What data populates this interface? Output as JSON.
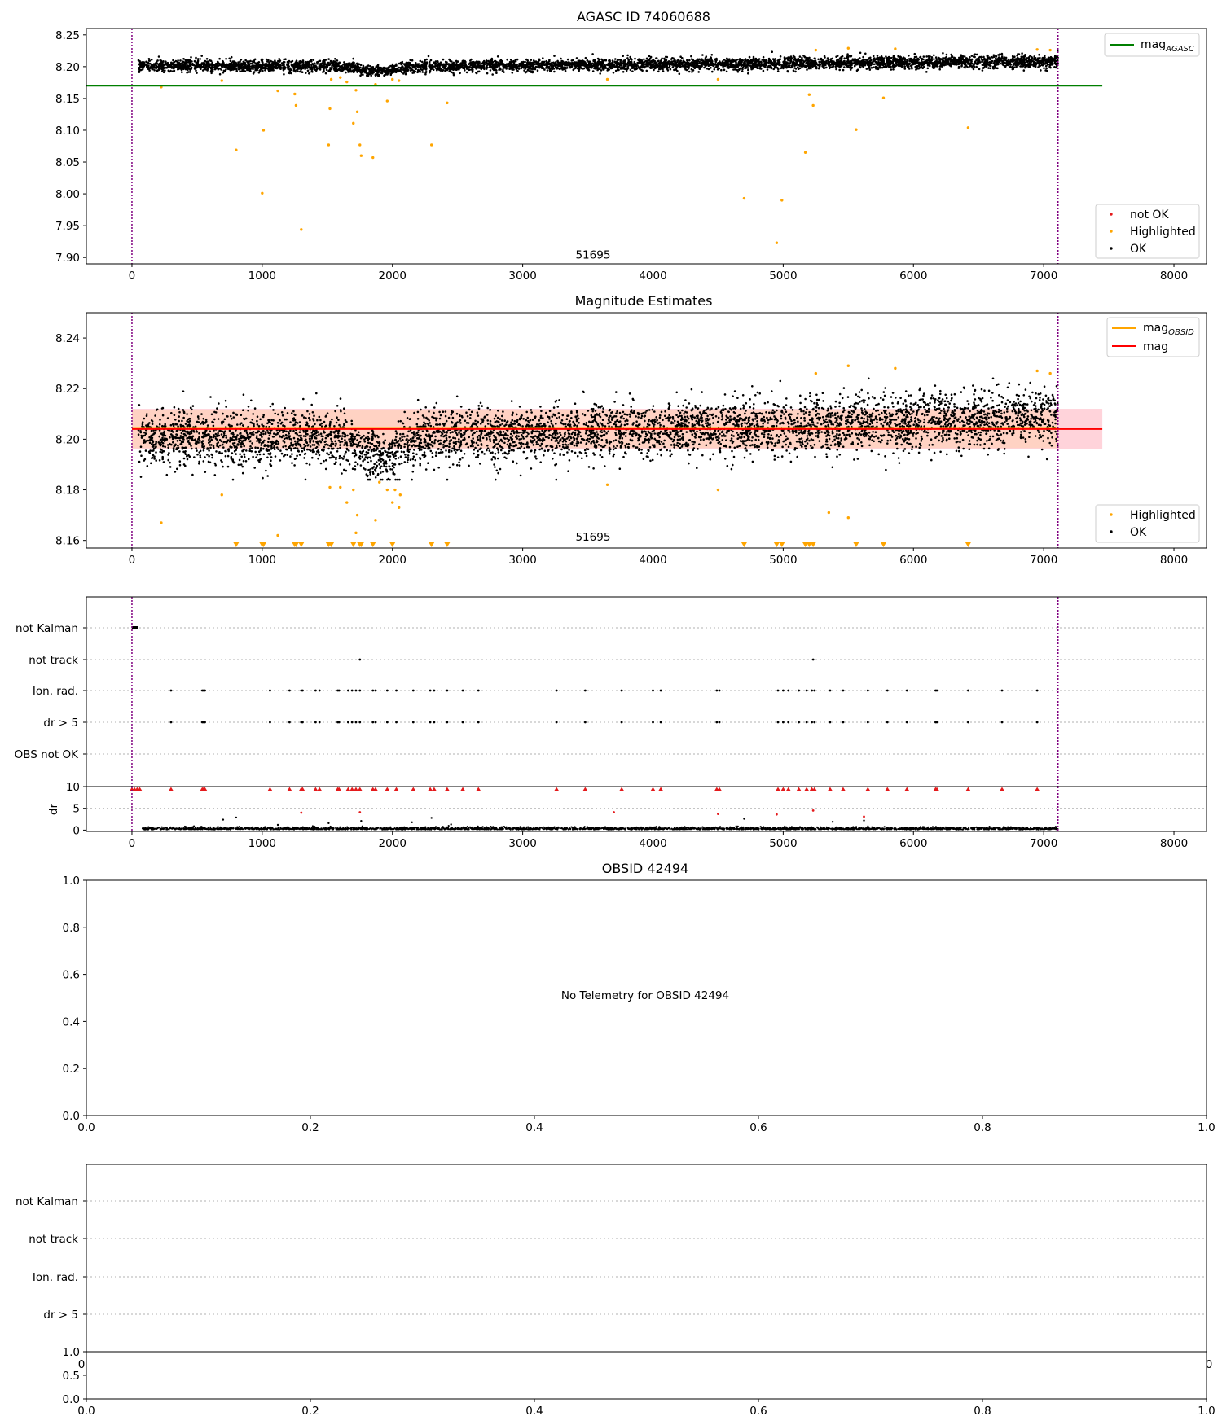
{
  "colors": {
    "ok": "#000000",
    "highlighted": "#ffa500",
    "not_ok": "#e41a1c",
    "mag_agasc": "#007f00",
    "mag": "#ff0000",
    "mag_obsid": "#ffa500",
    "obs_boundary": "#800080",
    "band_outer": "#ffb6c1",
    "band_inner": "#ffd2b4"
  },
  "chart_data": [
    {
      "id": "mag-history",
      "type": "scatter",
      "title": "AGASC ID 74060688",
      "xlim": [
        -350,
        8250
      ],
      "ylim": [
        7.89,
        8.26
      ],
      "x_ticks": [
        0,
        1000,
        2000,
        3000,
        4000,
        5000,
        6000,
        7000,
        8000
      ],
      "y_ticks": [
        7.9,
        7.95,
        8.0,
        8.05,
        8.1,
        8.15,
        8.2,
        8.25
      ],
      "obs_boundaries": [
        0,
        7110
      ],
      "annotation": {
        "text": "51695",
        "x": 3540,
        "y": 7.905
      },
      "lines": [
        {
          "name": "mag",
          "subscript": "AGASC",
          "y": 8.17,
          "x": [
            -350,
            7450
          ],
          "color": "#007f00"
        }
      ],
      "legend_lines_position": "top-right",
      "legend_points_position": "lower-right",
      "legend_points": [
        "not OK",
        "Highlighted",
        "OK"
      ],
      "ok_band": {
        "center": 8.204,
        "spread": 0.007,
        "x": [
          50,
          7110
        ]
      },
      "highlighted": [
        [
          225,
          8.168
        ],
        [
          690,
          8.178
        ],
        [
          800,
          8.069
        ],
        [
          1000,
          8.001
        ],
        [
          1010,
          8.1
        ],
        [
          1120,
          8.162
        ],
        [
          1250,
          8.157
        ],
        [
          1260,
          8.139
        ],
        [
          1300,
          7.944
        ],
        [
          1510,
          8.077
        ],
        [
          1520,
          8.134
        ],
        [
          1530,
          8.18
        ],
        [
          1600,
          8.183
        ],
        [
          1650,
          8.176
        ],
        [
          1700,
          8.111
        ],
        [
          1720,
          8.163
        ],
        [
          1730,
          8.129
        ],
        [
          1750,
          8.077
        ],
        [
          1760,
          8.06
        ],
        [
          1850,
          8.057
        ],
        [
          1870,
          8.172
        ],
        [
          1960,
          8.146
        ],
        [
          2000,
          8.18
        ],
        [
          2050,
          8.178
        ],
        [
          2300,
          8.077
        ],
        [
          2420,
          8.143
        ],
        [
          3650,
          8.18
        ],
        [
          4500,
          8.18
        ],
        [
          4700,
          7.993
        ],
        [
          4950,
          7.923
        ],
        [
          4990,
          7.99
        ],
        [
          5170,
          8.065
        ],
        [
          5200,
          8.156
        ],
        [
          5230,
          8.139
        ],
        [
          5250,
          8.226
        ],
        [
          5500,
          8.229
        ],
        [
          5560,
          8.101
        ],
        [
          5770,
          8.151
        ],
        [
          5860,
          8.228
        ],
        [
          6420,
          8.104
        ],
        [
          6950,
          8.227
        ],
        [
          7050,
          8.226
        ]
      ]
    },
    {
      "id": "mag-estimates",
      "type": "scatter",
      "title": "Magnitude Estimates",
      "xlim": [
        -350,
        8250
      ],
      "ylim": [
        8.157,
        8.25
      ],
      "x_ticks": [
        0,
        1000,
        2000,
        3000,
        4000,
        5000,
        6000,
        7000,
        8000
      ],
      "y_ticks": [
        8.16,
        8.18,
        8.2,
        8.22,
        8.24
      ],
      "obs_boundaries": [
        0,
        7110
      ],
      "annotation": {
        "text": "51695",
        "x": 3540,
        "y": 8.1615
      },
      "lines": [
        {
          "name": "mag",
          "subscript": "OBSID",
          "y": 8.2045,
          "x": [
            0,
            7110
          ],
          "color": "#ffa500"
        },
        {
          "name": "mag",
          "subscript": "",
          "y": 8.204,
          "x": [
            0,
            7450
          ],
          "color": "#ff0000"
        }
      ],
      "bands": [
        {
          "y": [
            8.196,
            8.212
          ],
          "x": [
            0,
            7450
          ],
          "color": "#ffb6c1"
        },
        {
          "y": [
            8.1965,
            8.2115
          ],
          "x": [
            0,
            7110
          ],
          "color": "#ffd2b4"
        }
      ],
      "legend_lines_position": "top-right",
      "legend_points_position": "lower-right",
      "legend_points": [
        "Highlighted",
        "OK"
      ],
      "highlighted_in_range": [
        [
          225,
          8.167
        ],
        [
          690,
          8.178
        ],
        [
          1120,
          8.162
        ],
        [
          1520,
          8.181
        ],
        [
          1600,
          8.181
        ],
        [
          1650,
          8.175
        ],
        [
          1700,
          8.18
        ],
        [
          1720,
          8.163
        ],
        [
          1730,
          8.17
        ],
        [
          1870,
          8.168
        ],
        [
          1900,
          8.183
        ],
        [
          1960,
          8.18
        ],
        [
          2000,
          8.175
        ],
        [
          2020,
          8.18
        ],
        [
          2050,
          8.173
        ],
        [
          2060,
          8.178
        ],
        [
          3650,
          8.182
        ],
        [
          4500,
          8.18
        ],
        [
          5350,
          8.171
        ],
        [
          5500,
          8.169
        ],
        [
          5250,
          8.226
        ],
        [
          5500,
          8.229
        ],
        [
          5860,
          8.228
        ],
        [
          6950,
          8.227
        ],
        [
          7050,
          8.226
        ]
      ],
      "highlighted_clipped_x": [
        800,
        1000,
        1010,
        1250,
        1260,
        1300,
        1510,
        1530,
        1700,
        1750,
        1760,
        1850,
        2000,
        2300,
        2420,
        4700,
        4950,
        4990,
        5170,
        5200,
        5230,
        5560,
        5770,
        6420
      ]
    },
    {
      "id": "flags-1",
      "type": "scatter",
      "xlim": [
        -350,
        8250
      ],
      "categories": [
        "not Kalman",
        "not track",
        "Ion. rad.",
        "dr > 5",
        "OBS not OK"
      ],
      "obs_boundaries": [
        0,
        7110
      ],
      "not_kalman_x": [
        0,
        50
      ],
      "not_track_x": [
        1750,
        5230
      ],
      "ion_rad_x": [
        300,
        540,
        550,
        560,
        1060,
        1210,
        1300,
        1310,
        1410,
        1440,
        1580,
        1590,
        1660,
        1690,
        1720,
        1750,
        1850,
        1870,
        1960,
        2030,
        2160,
        2290,
        2320,
        2420,
        2540,
        2660,
        3260,
        3480,
        3760,
        4000,
        4060,
        4490,
        4510,
        4960,
        5000,
        5040,
        5120,
        5180,
        5220,
        5240,
        5360,
        5460,
        5650,
        5800,
        5950,
        6170,
        6180,
        6420,
        6680,
        6950
      ],
      "dr_gt5_x": [
        300,
        540,
        550,
        560,
        1060,
        1210,
        1300,
        1310,
        1410,
        1440,
        1580,
        1590,
        1660,
        1690,
        1720,
        1750,
        1850,
        1870,
        1960,
        2030,
        2160,
        2290,
        2320,
        2420,
        2540,
        2660,
        3260,
        3480,
        3760,
        4000,
        4060,
        4490,
        4510,
        4960,
        5000,
        5040,
        5120,
        5180,
        5220,
        5240,
        5360,
        5460,
        5650,
        5800,
        5950,
        6170,
        6180,
        6420,
        6680,
        6950
      ]
    },
    {
      "id": "dr-1",
      "type": "scatter",
      "ylabel": "dr",
      "xlim": [
        -350,
        8250
      ],
      "ylim": [
        -0.3,
        10
      ],
      "x_ticks": [
        0,
        1000,
        2000,
        3000,
        4000,
        5000,
        6000,
        7000,
        8000
      ],
      "y_ticks": [
        0,
        5,
        10
      ],
      "obs_boundaries": [
        0,
        7110
      ],
      "clipped_red_x": [
        0,
        20,
        40,
        60,
        300,
        540,
        550,
        560,
        1060,
        1210,
        1300,
        1310,
        1410,
        1440,
        1580,
        1590,
        1660,
        1690,
        1720,
        1750,
        1850,
        1870,
        1960,
        2030,
        2160,
        2290,
        2320,
        2420,
        2540,
        2660,
        3260,
        3480,
        3760,
        4000,
        4060,
        4490,
        4510,
        4960,
        5000,
        5040,
        5120,
        5180,
        5220,
        5240,
        5360,
        5460,
        5650,
        5800,
        5950,
        6170,
        6180,
        6420,
        6680,
        6950
      ],
      "red_points": [
        [
          1300,
          4.0
        ],
        [
          1750,
          4.1
        ],
        [
          3700,
          4.1
        ],
        [
          4500,
          3.7
        ],
        [
          4950,
          3.6
        ],
        [
          5230,
          4.5
        ],
        [
          5620,
          3.1
        ]
      ],
      "black_spikes": [
        [
          700,
          2.4
        ],
        [
          800,
          2.9
        ],
        [
          1120,
          1.2
        ],
        [
          1510,
          1.6
        ],
        [
          1760,
          2.1
        ],
        [
          2150,
          1.8
        ],
        [
          2300,
          2.8
        ],
        [
          2450,
          1.3
        ],
        [
          4700,
          2.6
        ],
        [
          5380,
          1.9
        ],
        [
          5620,
          2.2
        ]
      ]
    },
    {
      "id": "obsid-mag",
      "type": "scatter",
      "title": "OBSID 42494",
      "xlim": [
        0,
        1
      ],
      "ylim": [
        0,
        1
      ],
      "x_ticks": [
        "0.0",
        "0.2",
        "0.4",
        "0.6",
        "0.8",
        "1.0"
      ],
      "y_ticks": [
        "0.0",
        "0.2",
        "0.4",
        "0.6",
        "0.8",
        "1.0"
      ],
      "message": "No Telemetry for OBSID 42494"
    },
    {
      "id": "flags-2",
      "type": "scatter",
      "categories": [
        "not Kalman",
        "not track",
        "Ion. rad.",
        "dr > 5"
      ],
      "x_tick_edge": [
        "0",
        "0"
      ]
    },
    {
      "id": "dr-2",
      "type": "scatter",
      "xlim": [
        0,
        1
      ],
      "ylim": [
        0,
        1
      ],
      "x_ticks": [
        "0.0",
        "0.2",
        "0.4",
        "0.6",
        "0.8",
        "1.0"
      ],
      "y_ticks": [
        "0.0",
        "0.5",
        "1.0"
      ]
    }
  ]
}
